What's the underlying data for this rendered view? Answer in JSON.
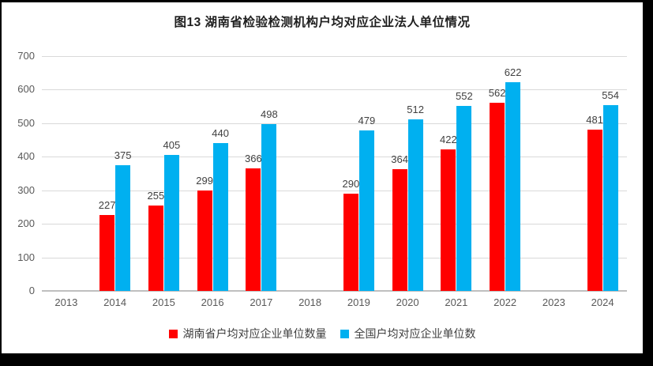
{
  "chart_data": {
    "type": "bar",
    "title": "图13 湖南省检验检测机构户均对应企业法人单位情况",
    "categories": [
      "2013",
      "2014",
      "2015",
      "2016",
      "2017",
      "2018",
      "2019",
      "2020",
      "2021",
      "2022",
      "2023",
      "2024"
    ],
    "series": [
      {
        "name": "湖南省户均对应企业单位数量",
        "color": "#ff0000",
        "values": [
          null,
          227,
          255,
          299,
          366,
          null,
          290,
          364,
          422,
          562,
          null,
          481
        ]
      },
      {
        "name": "全国户均对应企业单位数",
        "color": "#00b0f0",
        "values": [
          null,
          375,
          405,
          440,
          498,
          null,
          479,
          512,
          552,
          622,
          null,
          554
        ]
      }
    ],
    "xlabel": "",
    "ylabel": "",
    "ylim": [
      0,
      700
    ],
    "ytick_step": 100,
    "yticks": [
      "0",
      "100",
      "200",
      "300",
      "400",
      "500",
      "600",
      "700"
    ],
    "grid": true,
    "data_labels": true,
    "legend_position": "bottom"
  },
  "style": {
    "background": "#ffffff",
    "border_color": "#000000",
    "gridline_color": "#d9d9d9",
    "axis_line_color": "#bfbfbf",
    "tick_label_color": "#595959",
    "data_label_color": "#404040",
    "title_color": "#1f1f1f"
  }
}
